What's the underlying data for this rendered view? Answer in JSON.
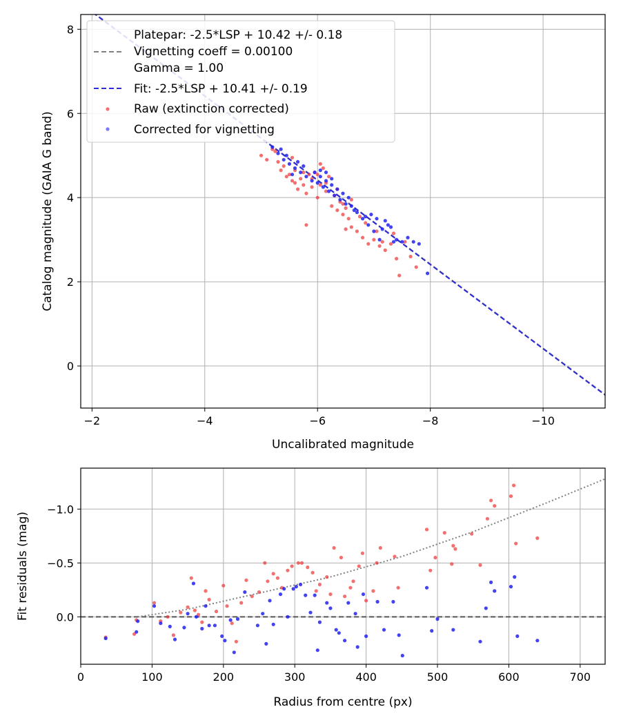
{
  "chart_data": [
    {
      "type": "scatter",
      "xlabel": "Uncalibrated magnitude",
      "ylabel": "Catalog magnitude (GAIA G band)",
      "xlim": [
        -1.8,
        -11.1
      ],
      "ylim": [
        8.35,
        -1.0
      ],
      "x_inverted": true,
      "y_inverted": true,
      "grid": true,
      "legend_placement": "top-left",
      "xticks": [
        -2,
        -4,
        -6,
        -8,
        -10
      ],
      "xtick_labels": [
        "−2",
        "−4",
        "−6",
        "−8",
        "−10"
      ],
      "yticks": [
        0,
        2,
        4,
        6,
        8
      ],
      "ytick_labels": [
        "0",
        "2",
        "4",
        "6",
        "8"
      ],
      "legend": {
        "platepar_line1": "Platepar: -2.5*LSP + 10.42 +/- 0.18",
        "platepar_line2": "Vignetting coeff = 0.00100",
        "platepar_line3": "Gamma = 1.00",
        "fit": "Fit: -2.5*LSP + 10.41 +/- 0.19",
        "raw": "Raw (extinction corrected)",
        "corrected": "Corrected for vignetting"
      },
      "lines": [
        {
          "name": "Platepar",
          "slope": 1.0,
          "intercept": 10.42,
          "color": "#808080",
          "style": "dashed"
        },
        {
          "name": "Fit",
          "slope": 1.0,
          "intercept": 10.41,
          "color": "#2b2bd8",
          "style": "dashed"
        }
      ],
      "series": [
        {
          "name": "Raw (extinction corrected)",
          "color": "#ee3333",
          "points": [
            [
              -5.0,
              5.0
            ],
            [
              -5.2,
              5.15
            ],
            [
              -5.3,
              4.85
            ],
            [
              -5.4,
              4.75
            ],
            [
              -5.45,
              4.5
            ],
            [
              -5.5,
              4.55
            ],
            [
              -5.55,
              4.4
            ],
            [
              -5.6,
              4.65
            ],
            [
              -5.65,
              4.2
            ],
            [
              -5.7,
              4.45
            ],
            [
              -5.75,
              4.3
            ],
            [
              -5.8,
              4.1
            ],
            [
              -5.85,
              4.55
            ],
            [
              -5.9,
              4.25
            ],
            [
              -5.95,
              4.6
            ],
            [
              -6.0,
              4.0
            ],
            [
              -6.05,
              4.3
            ],
            [
              -6.1,
              4.7
            ],
            [
              -6.15,
              4.15
            ],
            [
              -6.2,
              4.5
            ],
            [
              -6.25,
              3.8
            ],
            [
              -6.3,
              4.05
            ],
            [
              -6.35,
              3.7
            ],
            [
              -6.4,
              3.9
            ],
            [
              -6.45,
              3.6
            ],
            [
              -6.5,
              3.75
            ],
            [
              -6.55,
              3.5
            ],
            [
              -6.6,
              3.3
            ],
            [
              -6.7,
              3.2
            ],
            [
              -6.8,
              3.05
            ],
            [
              -6.9,
              2.9
            ],
            [
              -7.0,
              3.0
            ],
            [
              -7.1,
              2.85
            ],
            [
              -7.2,
              2.75
            ],
            [
              -7.3,
              2.9
            ],
            [
              -7.4,
              2.55
            ],
            [
              -7.45,
              2.15
            ],
            [
              -7.55,
              2.95
            ],
            [
              -7.65,
              2.6
            ],
            [
              -7.75,
              2.35
            ],
            [
              -5.1,
              4.9
            ],
            [
              -5.35,
              4.65
            ],
            [
              -5.6,
              4.35
            ],
            [
              -5.8,
              3.35
            ],
            [
              -6.05,
              4.8
            ],
            [
              -6.35,
              4.2
            ],
            [
              -6.6,
              3.95
            ],
            [
              -6.75,
              3.55
            ],
            [
              -7.05,
              3.2
            ],
            [
              -7.35,
              3.15
            ],
            [
              -5.55,
              4.95
            ],
            [
              -5.9,
              4.45
            ],
            [
              -6.15,
              4.35
            ],
            [
              -6.45,
              3.85
            ],
            [
              -6.85,
              3.4
            ],
            [
              -5.25,
              5.1
            ],
            [
              -6.0,
              4.55
            ],
            [
              -6.5,
              3.25
            ],
            [
              -7.15,
              2.95
            ],
            [
              -5.75,
              4.6
            ]
          ]
        },
        {
          "name": "Corrected for vignetting",
          "color": "#2222ee",
          "points": [
            [
              -5.2,
              5.2
            ],
            [
              -5.3,
              5.05
            ],
            [
              -5.4,
              4.9
            ],
            [
              -5.5,
              4.8
            ],
            [
              -5.6,
              4.7
            ],
            [
              -5.7,
              4.6
            ],
            [
              -5.8,
              4.5
            ],
            [
              -5.9,
              4.4
            ],
            [
              -6.0,
              4.35
            ],
            [
              -6.05,
              4.5
            ],
            [
              -6.1,
              4.25
            ],
            [
              -6.15,
              4.4
            ],
            [
              -6.2,
              4.15
            ],
            [
              -6.25,
              4.3
            ],
            [
              -6.3,
              4.05
            ],
            [
              -6.35,
              4.2
            ],
            [
              -6.4,
              3.95
            ],
            [
              -6.5,
              3.85
            ],
            [
              -6.6,
              3.8
            ],
            [
              -6.7,
              3.65
            ],
            [
              -6.8,
              3.5
            ],
            [
              -6.9,
              3.35
            ],
            [
              -7.0,
              3.2
            ],
            [
              -7.05,
              3.5
            ],
            [
              -7.1,
              3.0
            ],
            [
              -7.2,
              3.45
            ],
            [
              -7.3,
              3.3
            ],
            [
              -7.4,
              3.0
            ],
            [
              -7.5,
              2.95
            ],
            [
              -7.6,
              3.05
            ],
            [
              -7.7,
              2.95
            ],
            [
              -7.8,
              2.9
            ],
            [
              -7.95,
              2.2
            ],
            [
              -5.35,
              5.15
            ],
            [
              -5.65,
              4.85
            ],
            [
              -5.95,
              4.6
            ],
            [
              -6.25,
              4.45
            ],
            [
              -6.55,
              4.0
            ],
            [
              -6.85,
              3.55
            ],
            [
              -7.25,
              3.35
            ],
            [
              -5.45,
              5.0
            ],
            [
              -5.75,
              4.75
            ],
            [
              -6.05,
              4.65
            ],
            [
              -6.45,
              4.1
            ],
            [
              -6.95,
              3.6
            ],
            [
              -7.35,
              2.95
            ],
            [
              -5.55,
              4.55
            ],
            [
              -6.15,
              4.6
            ],
            [
              -6.65,
              3.7
            ],
            [
              -7.15,
              3.25
            ]
          ]
        }
      ]
    },
    {
      "type": "scatter",
      "xlabel": "Radius from centre (px)",
      "ylabel": "Fit residuals (mag)",
      "xlim": [
        0,
        735
      ],
      "ylim": [
        -1.38,
        0.44
      ],
      "grid": true,
      "xticks": [
        0,
        100,
        200,
        300,
        400,
        500,
        600,
        700
      ],
      "xtick_labels": [
        "0",
        "100",
        "200",
        "300",
        "400",
        "500",
        "600",
        "700"
      ],
      "yticks": [
        0.0,
        -0.5,
        -1.0
      ],
      "ytick_labels": [
        "0.0",
        "−0.5",
        "−1.0"
      ],
      "lines": [
        {
          "name": "Zero",
          "y": 0.0,
          "color": "#555555",
          "style": "dashed"
        },
        {
          "name": "Vignetting model",
          "type": "curve",
          "color": "#808080",
          "style": "dotted",
          "points": [
            [
              80,
              0.0
            ],
            [
              150,
              -0.07
            ],
            [
              250,
              -0.22
            ],
            [
              350,
              -0.37
            ],
            [
              450,
              -0.56
            ],
            [
              550,
              -0.79
            ],
            [
              650,
              -1.05
            ],
            [
              735,
              -1.28
            ]
          ]
        }
      ],
      "series": [
        {
          "name": "Raw",
          "color": "#ee3333",
          "points": [
            [
              35,
              0.19
            ],
            [
              75,
              0.16
            ],
            [
              78,
              0.03
            ],
            [
              103,
              -0.13
            ],
            [
              112,
              0.04
            ],
            [
              122,
              0.0
            ],
            [
              130,
              0.17
            ],
            [
              140,
              -0.04
            ],
            [
              150,
              -0.09
            ],
            [
              155,
              -0.36
            ],
            [
              160,
              -0.06
            ],
            [
              165,
              -0.02
            ],
            [
              170,
              0.05
            ],
            [
              175,
              -0.24
            ],
            [
              180,
              -0.16
            ],
            [
              190,
              -0.05
            ],
            [
              200,
              -0.29
            ],
            [
              205,
              -0.1
            ],
            [
              212,
              0.06
            ],
            [
              218,
              0.23
            ],
            [
              225,
              -0.13
            ],
            [
              232,
              -0.34
            ],
            [
              240,
              -0.19
            ],
            [
              250,
              -0.23
            ],
            [
              258,
              -0.5
            ],
            [
              262,
              -0.33
            ],
            [
              270,
              -0.4
            ],
            [
              276,
              -0.36
            ],
            [
              282,
              -0.27
            ],
            [
              290,
              -0.43
            ],
            [
              296,
              -0.47
            ],
            [
              305,
              -0.5
            ],
            [
              310,
              -0.5
            ],
            [
              318,
              -0.46
            ],
            [
              325,
              -0.41
            ],
            [
              330,
              -0.24
            ],
            [
              335,
              -0.3
            ],
            [
              345,
              -0.37
            ],
            [
              350,
              -0.21
            ],
            [
              355,
              -0.64
            ],
            [
              365,
              -0.55
            ],
            [
              370,
              -0.19
            ],
            [
              378,
              -0.27
            ],
            [
              382,
              -0.33
            ],
            [
              390,
              -0.47
            ],
            [
              395,
              -0.59
            ],
            [
              400,
              -0.15
            ],
            [
              410,
              -0.24
            ],
            [
              415,
              -0.5
            ],
            [
              420,
              -0.64
            ],
            [
              440,
              -0.56
            ],
            [
              445,
              -0.27
            ],
            [
              485,
              -0.81
            ],
            [
              490,
              -0.43
            ],
            [
              497,
              -0.55
            ],
            [
              510,
              -0.78
            ],
            [
              520,
              -0.49
            ],
            [
              522,
              -0.66
            ],
            [
              525,
              -0.63
            ],
            [
              548,
              -0.77
            ],
            [
              560,
              -0.48
            ],
            [
              570,
              -0.91
            ],
            [
              575,
              -1.08
            ],
            [
              580,
              -1.03
            ],
            [
              603,
              -1.12
            ],
            [
              607,
              -1.22
            ],
            [
              610,
              -0.68
            ],
            [
              640,
              -0.73
            ]
          ]
        },
        {
          "name": "Corrected",
          "color": "#2222ee",
          "points": [
            [
              35,
              0.2
            ],
            [
              78,
              0.14
            ],
            [
              80,
              0.04
            ],
            [
              103,
              -0.1
            ],
            [
              112,
              0.06
            ],
            [
              125,
              0.09
            ],
            [
              132,
              0.21
            ],
            [
              145,
              0.1
            ],
            [
              150,
              -0.03
            ],
            [
              158,
              -0.31
            ],
            [
              162,
              0.0
            ],
            [
              170,
              0.11
            ],
            [
              175,
              -0.1
            ],
            [
              180,
              0.08
            ],
            [
              188,
              0.08
            ],
            [
              198,
              0.18
            ],
            [
              202,
              0.22
            ],
            [
              210,
              0.03
            ],
            [
              215,
              0.33
            ],
            [
              220,
              0.02
            ],
            [
              230,
              -0.23
            ],
            [
              248,
              0.08
            ],
            [
              255,
              -0.03
            ],
            [
              260,
              0.25
            ],
            [
              265,
              -0.15
            ],
            [
              270,
              0.07
            ],
            [
              280,
              -0.21
            ],
            [
              285,
              -0.26
            ],
            [
              290,
              0.0
            ],
            [
              298,
              -0.26
            ],
            [
              302,
              -0.28
            ],
            [
              308,
              -0.3
            ],
            [
              315,
              -0.2
            ],
            [
              322,
              -0.04
            ],
            [
              328,
              -0.2
            ],
            [
              332,
              0.31
            ],
            [
              335,
              0.05
            ],
            [
              345,
              -0.13
            ],
            [
              350,
              -0.08
            ],
            [
              358,
              0.12
            ],
            [
              362,
              0.15
            ],
            [
              370,
              0.22
            ],
            [
              375,
              -0.13
            ],
            [
              385,
              -0.03
            ],
            [
              388,
              0.28
            ],
            [
              396,
              -0.21
            ],
            [
              400,
              0.18
            ],
            [
              416,
              -0.14
            ],
            [
              425,
              0.12
            ],
            [
              438,
              -0.14
            ],
            [
              446,
              0.17
            ],
            [
              451,
              0.36
            ],
            [
              485,
              -0.27
            ],
            [
              492,
              0.13
            ],
            [
              500,
              0.02
            ],
            [
              522,
              0.12
            ],
            [
              560,
              0.23
            ],
            [
              568,
              -0.08
            ],
            [
              575,
              -0.32
            ],
            [
              580,
              -0.24
            ],
            [
              603,
              -0.28
            ],
            [
              608,
              -0.37
            ],
            [
              612,
              0.18
            ],
            [
              640,
              0.22
            ]
          ]
        }
      ]
    }
  ]
}
